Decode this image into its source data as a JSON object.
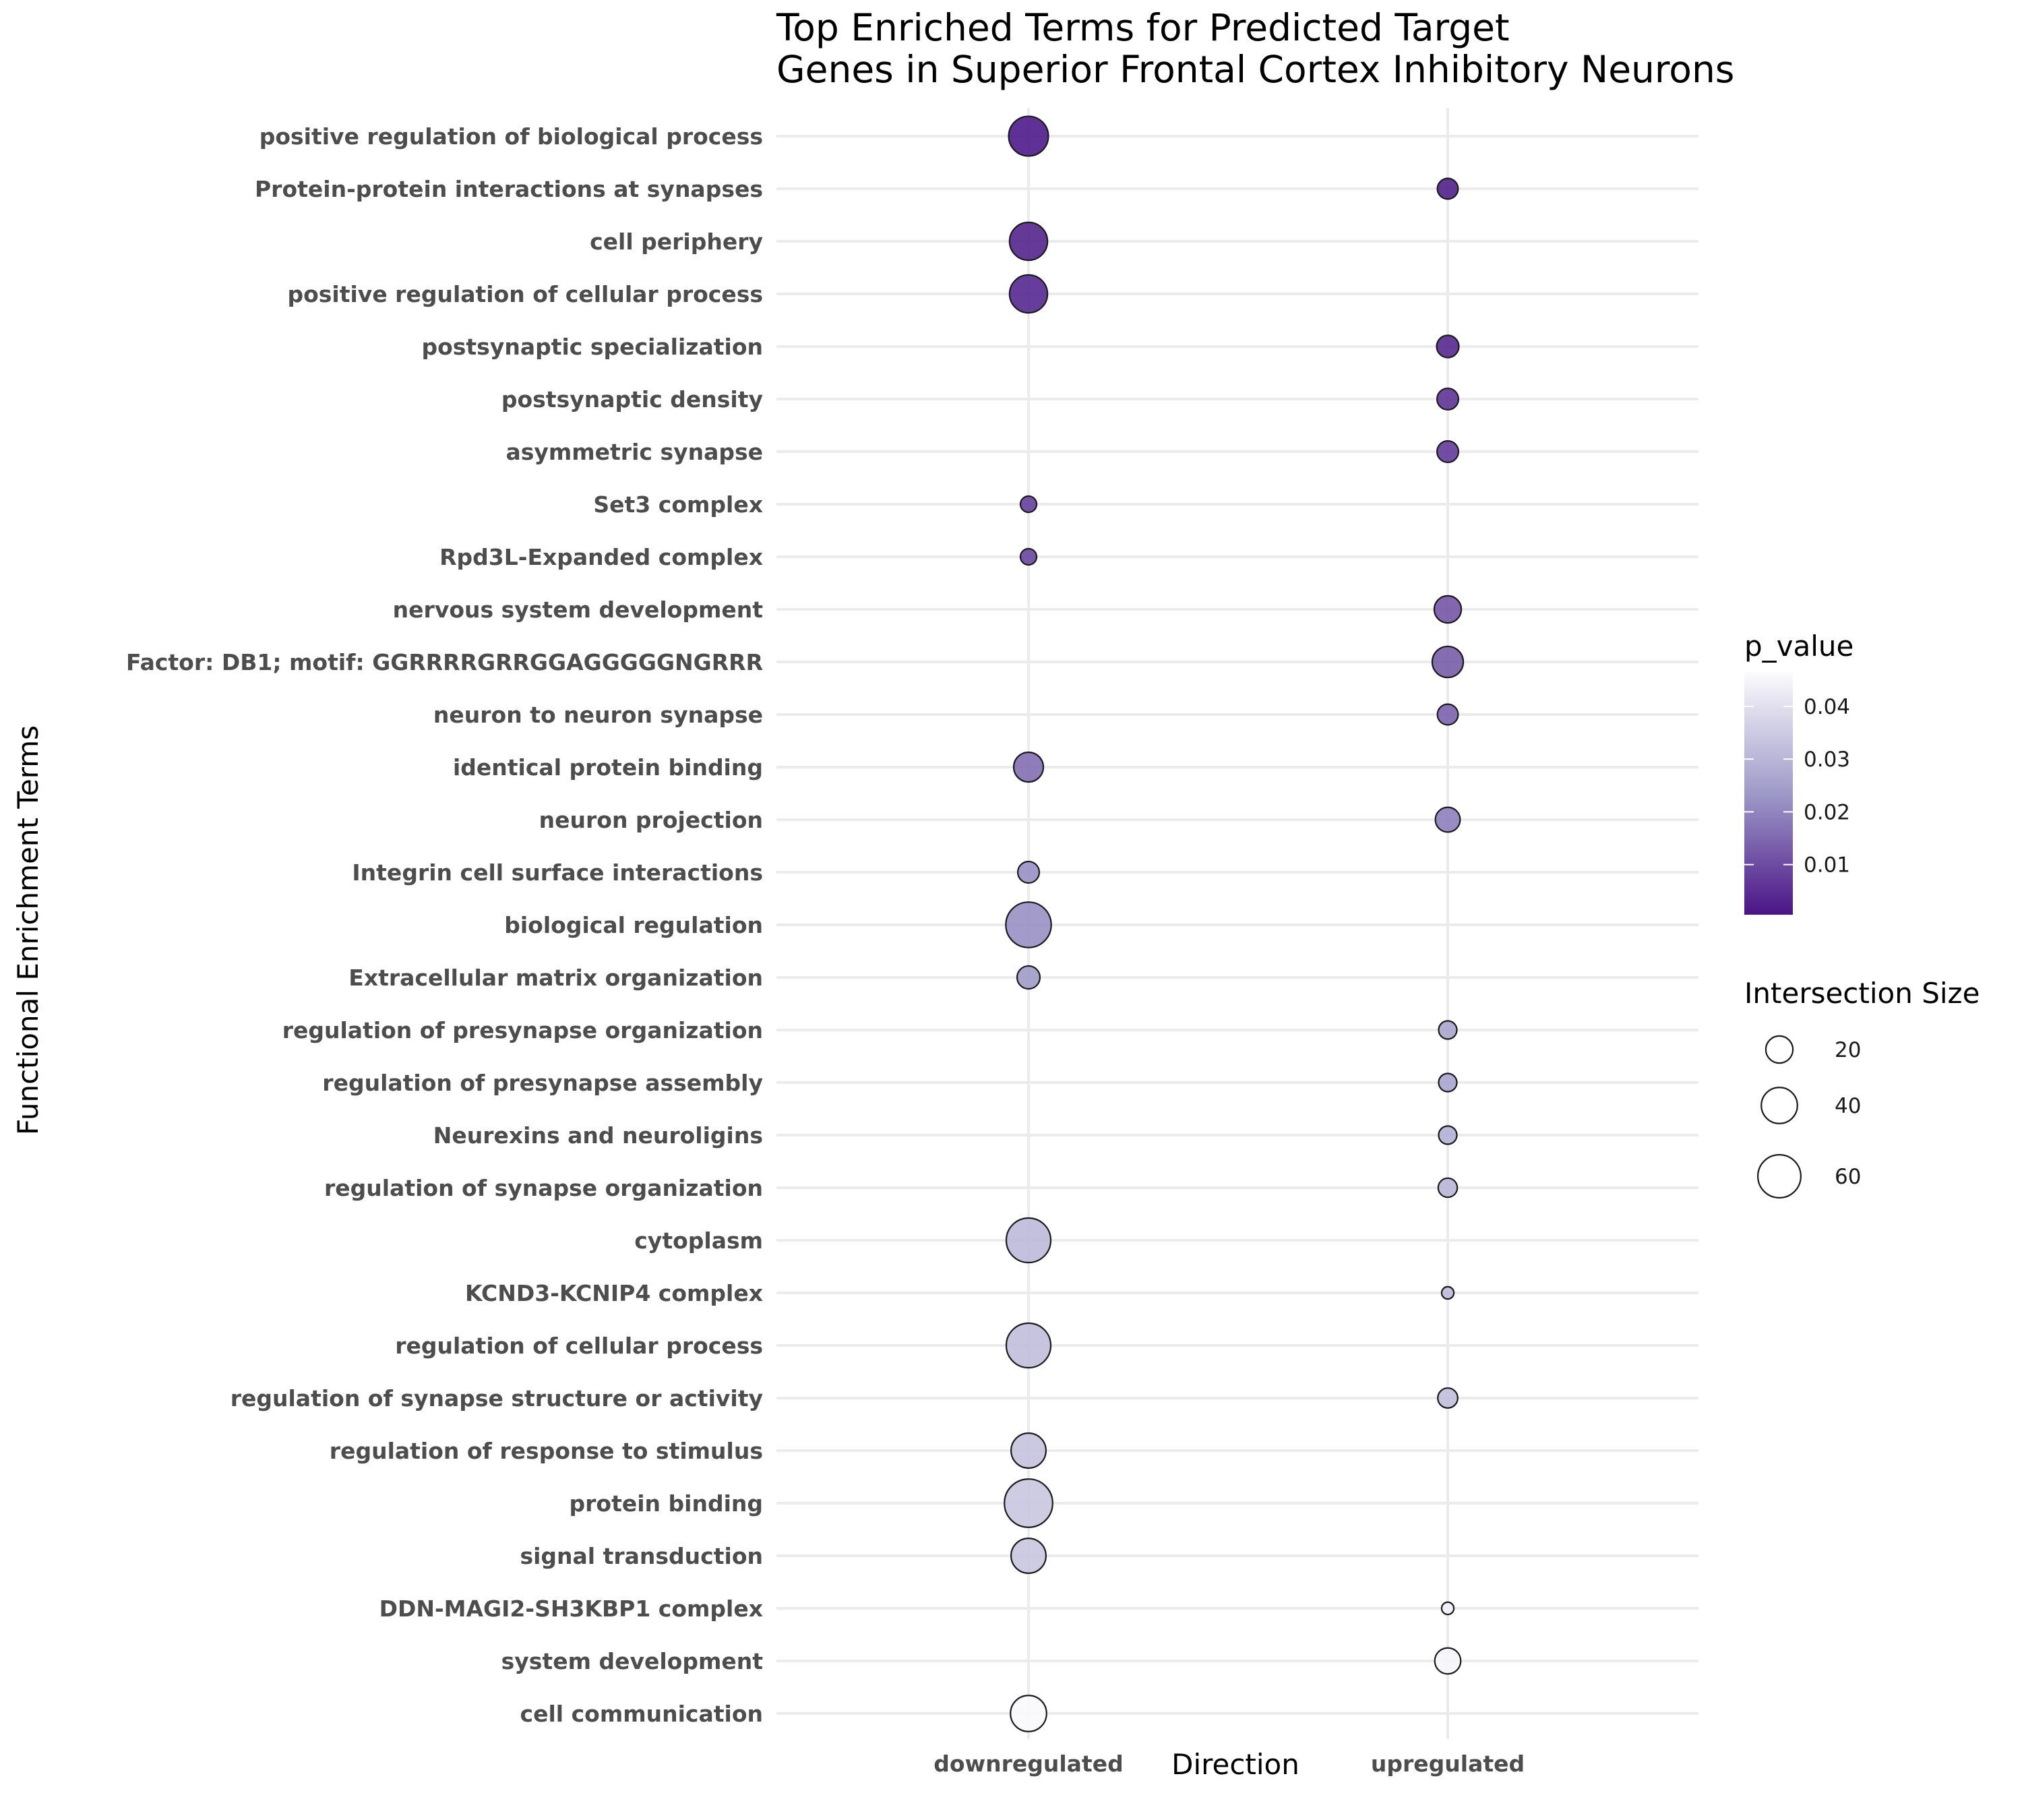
{
  "chart_data": {
    "type": "scatter",
    "title_line1": "Top Enriched Terms for Predicted Target",
    "title_line2": "Genes in Superior Frontal Cortex Inhibitory Neurons",
    "xlabel": "Direction",
    "ylabel": "Functional Enrichment Terms",
    "categories": [
      "downregulated",
      "upregulated"
    ],
    "terms": [
      "positive regulation of biological process",
      "Protein-protein interactions at synapses",
      "cell periphery",
      "positive regulation of cellular process",
      "postsynaptic specialization",
      "postsynaptic density",
      "asymmetric synapse",
      "Set3 complex",
      "Rpd3L-Expanded complex",
      "nervous system development",
      "Factor: DB1; motif: GGRRRRGRRGGAGGGGGNGRRR",
      "neuron to neuron synapse",
      "identical protein binding",
      "neuron projection",
      "Integrin cell surface interactions",
      "biological regulation",
      "Extracellular matrix organization",
      "regulation of presynapse organization",
      "regulation of presynapse assembly",
      "Neurexins and neuroligins",
      "regulation of synapse organization",
      "cytoplasm",
      "KCND3-KCNIP4 complex",
      "regulation of cellular process",
      "regulation of synapse structure or activity",
      "regulation of response to stimulus",
      "protein binding",
      "signal transduction",
      "DDN-MAGI2-SH3KBP1 complex",
      "system development",
      "cell communication"
    ],
    "points": [
      {
        "term": "positive regulation of biological process",
        "direction": "downregulated",
        "p_value": 0.0015,
        "size": 50
      },
      {
        "term": "Protein-protein interactions at synapses",
        "direction": "upregulated",
        "p_value": 0.0025,
        "size": 10
      },
      {
        "term": "cell periphery",
        "direction": "downregulated",
        "p_value": 0.003,
        "size": 45
      },
      {
        "term": "positive regulation of cellular process",
        "direction": "downregulated",
        "p_value": 0.004,
        "size": 45
      },
      {
        "term": "postsynaptic specialization",
        "direction": "upregulated",
        "p_value": 0.004,
        "size": 12
      },
      {
        "term": "postsynaptic density",
        "direction": "upregulated",
        "p_value": 0.006,
        "size": 11
      },
      {
        "term": "asymmetric synapse",
        "direction": "upregulated",
        "p_value": 0.007,
        "size": 11
      },
      {
        "term": "Set3 complex",
        "direction": "downregulated",
        "p_value": 0.008,
        "size": 5
      },
      {
        "term": "Rpd3L-Expanded complex",
        "direction": "downregulated",
        "p_value": 0.009,
        "size": 5
      },
      {
        "term": "nervous system development",
        "direction": "upregulated",
        "p_value": 0.012,
        "size": 20
      },
      {
        "term": "Factor: DB1; motif: GGRRRRGRRGGAGGGGGNGRRR",
        "direction": "upregulated",
        "p_value": 0.013,
        "size": 28
      },
      {
        "term": "neuron to neuron synapse",
        "direction": "upregulated",
        "p_value": 0.014,
        "size": 10
      },
      {
        "term": "identical protein binding",
        "direction": "downregulated",
        "p_value": 0.016,
        "size": 25
      },
      {
        "term": "neuron projection",
        "direction": "upregulated",
        "p_value": 0.019,
        "size": 16
      },
      {
        "term": "Integrin cell surface interactions",
        "direction": "downregulated",
        "p_value": 0.022,
        "size": 11
      },
      {
        "term": "biological regulation",
        "direction": "downregulated",
        "p_value": 0.022,
        "size": 68
      },
      {
        "term": "Extracellular matrix organization",
        "direction": "downregulated",
        "p_value": 0.024,
        "size": 13
      },
      {
        "term": "regulation of presynapse organization",
        "direction": "upregulated",
        "p_value": 0.026,
        "size": 7
      },
      {
        "term": "regulation of presynapse assembly",
        "direction": "upregulated",
        "p_value": 0.026,
        "size": 7
      },
      {
        "term": "Neurexins and neuroligins",
        "direction": "upregulated",
        "p_value": 0.029,
        "size": 7
      },
      {
        "term": "regulation of synapse organization",
        "direction": "upregulated",
        "p_value": 0.03,
        "size": 8
      },
      {
        "term": "cytoplasm",
        "direction": "downregulated",
        "p_value": 0.031,
        "size": 65
      },
      {
        "term": "KCND3-KCNIP4 complex",
        "direction": "upregulated",
        "p_value": 0.031,
        "size": 2
      },
      {
        "term": "regulation of cellular process",
        "direction": "downregulated",
        "p_value": 0.032,
        "size": 65
      },
      {
        "term": "regulation of synapse structure or activity",
        "direction": "upregulated",
        "p_value": 0.032,
        "size": 9
      },
      {
        "term": "regulation of response to stimulus",
        "direction": "downregulated",
        "p_value": 0.033,
        "size": 37
      },
      {
        "term": "protein binding",
        "direction": "downregulated",
        "p_value": 0.034,
        "size": 78
      },
      {
        "term": "signal transduction",
        "direction": "downregulated",
        "p_value": 0.034,
        "size": 37
      },
      {
        "term": "DDN-MAGI2-SH3KBP1 complex",
        "direction": "upregulated",
        "p_value": 0.044,
        "size": 2
      },
      {
        "term": "system development",
        "direction": "upregulated",
        "p_value": 0.045,
        "size": 18
      },
      {
        "term": "cell communication",
        "direction": "downregulated",
        "p_value": 0.046,
        "size": 40
      }
    ],
    "color_legend": {
      "title": "p_value",
      "ticks": [
        "0.04",
        "0.03",
        "0.02",
        "0.01"
      ],
      "tick_values": [
        0.04,
        0.03,
        0.02,
        0.01
      ],
      "range": [
        0.0005,
        0.0465
      ],
      "color_low": "#4a1486",
      "color_mid": "#9e9ac8",
      "color_high": "#fcfbfd"
    },
    "size_legend": {
      "title": "Intersection Size",
      "labels": [
        "20",
        "40",
        "60"
      ],
      "values": [
        20,
        40,
        60
      ]
    },
    "grid": true,
    "legend_position": "right"
  }
}
